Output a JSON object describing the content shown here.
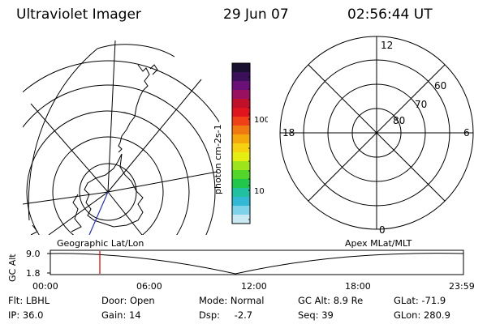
{
  "header": {
    "instrument": "Ultraviolet Imager",
    "date": "29 Jun 07",
    "time": "02:56:44 UT"
  },
  "colorbar": {
    "unit": "photon cm-2s-1",
    "tick_labels": [
      "100",
      "10"
    ],
    "colors": [
      "#1a1030",
      "#3b0f5a",
      "#6a1078",
      "#9a1060",
      "#c0102a",
      "#e0141c",
      "#f04018",
      "#f07a10",
      "#f4a80c",
      "#f6d210",
      "#e4ee10",
      "#9ee41a",
      "#52d62a",
      "#1fc84a",
      "#20c0a0",
      "#30b8d4",
      "#7ed2ea",
      "#c8e8f2"
    ]
  },
  "left_panel": {
    "name": "geographic-map"
  },
  "right_panel": {
    "mlt_labels": {
      "top": "12",
      "left": "18",
      "right": "6",
      "bottom": "0"
    },
    "mlat_labels": [
      "60",
      "70",
      "80"
    ]
  },
  "timeline": {
    "axis_label": "GC Alt",
    "left_caption": "Geographic Lat/Lon",
    "right_caption": "Apex MLat/MLT",
    "y_ticks": [
      "9.0",
      "1.8"
    ],
    "x_ticks": [
      "00:00",
      "06:00",
      "12:00",
      "18:00",
      "23:59"
    ],
    "current_marker_color": "#cc0000"
  },
  "status": {
    "filter_label": "Flt:",
    "filter_value": "LBHL",
    "ip_label": "IP:",
    "ip_value": "36.0",
    "door_label": "Door:",
    "door_value": "Open",
    "gain_label": "Gain:",
    "gain_value": "14",
    "mode_label": "Mode:",
    "mode_value": "Normal",
    "dsp_label": "Dsp:",
    "dsp_value": "-2.7",
    "gcalt_label": "GC Alt:",
    "gcalt_value": "8.9 Re",
    "seq_label": "Seq:",
    "seq_value": "39",
    "glat_label": "GLat:",
    "glat_value": "-71.9",
    "glon_label": "GLon:",
    "glon_value": "280.9"
  }
}
